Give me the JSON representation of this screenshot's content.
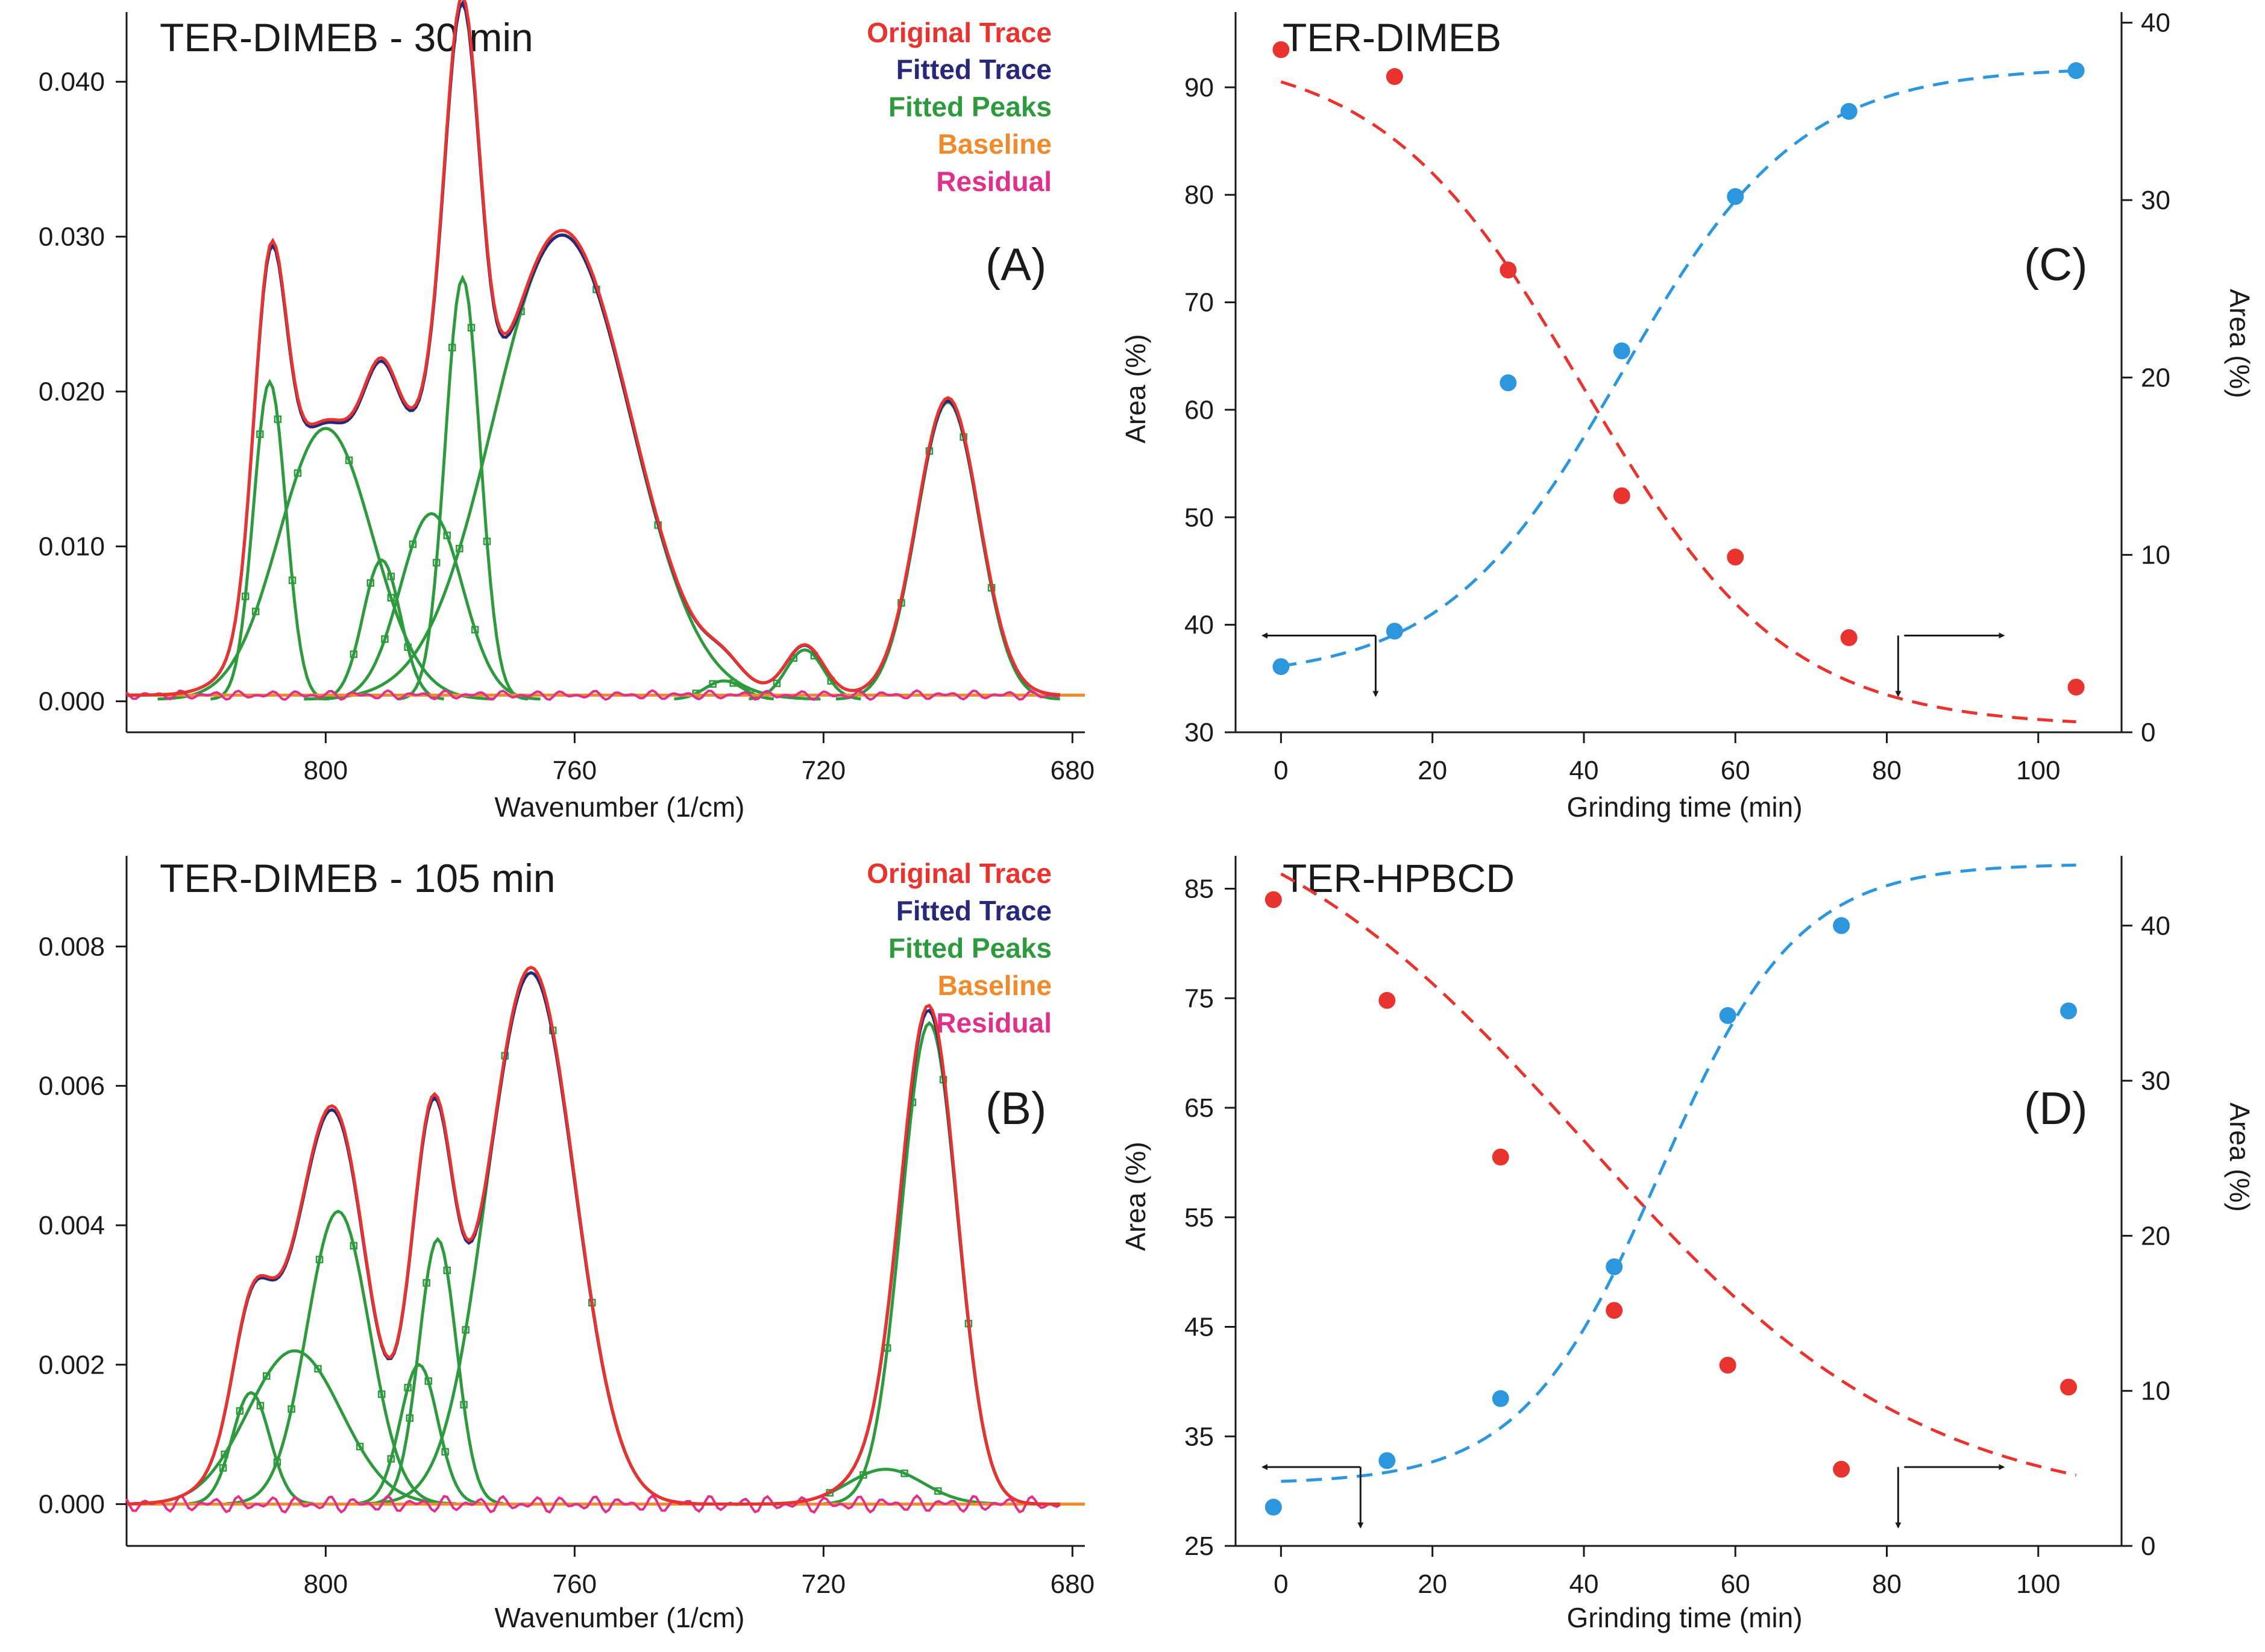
{
  "chart_data": [
    {
      "id": "A",
      "type": "line",
      "title": "TER-DIMEB - 30 min",
      "panel_label": "(A)",
      "xlabel": "Wavenumber (1/cm)",
      "ylabel": "",
      "x_reversed": true,
      "xlim": [
        832,
        678
      ],
      "ylim": [
        -0.002,
        0.0445
      ],
      "xticks": [
        800,
        760,
        720,
        680
      ],
      "yticks": [
        "0.000",
        "0.010",
        "0.020",
        "0.030",
        "0.040"
      ],
      "ytick_values": [
        0,
        0.01,
        0.02,
        0.03,
        0.04
      ],
      "legend": [
        {
          "label": "Original Trace",
          "color": "#e8332f"
        },
        {
          "label": "Fitted Trace",
          "color": "#28287a"
        },
        {
          "label": "Fitted Peaks",
          "color": "#2e9a3e"
        },
        {
          "label": "Baseline",
          "color": "#f08a2a"
        },
        {
          "label": "Residual",
          "color": "#e0308a"
        }
      ],
      "peaks": [
        {
          "center": 809,
          "amplitude": 0.0205,
          "width": 2.6
        },
        {
          "center": 800,
          "amplitude": 0.0175,
          "width": 7.5
        },
        {
          "center": 791,
          "amplitude": 0.009,
          "width": 3.0
        },
        {
          "center": 778,
          "amplitude": 0.0272,
          "width": 2.8
        },
        {
          "center": 762,
          "amplitude": 0.03,
          "width": 11.0
        },
        {
          "center": 736,
          "amplitude": 0.0012,
          "width": 3.0
        },
        {
          "center": 723,
          "amplitude": 0.0032,
          "width": 3.0
        },
        {
          "center": 700,
          "amplitude": 0.0192,
          "width": 5.0
        },
        {
          "center": 783,
          "amplitude": 0.012,
          "width": 5.0
        }
      ],
      "baseline": 0.0004
    },
    {
      "id": "B",
      "type": "line",
      "title": "TER-DIMEB - 105 min",
      "panel_label": "(B)",
      "xlabel": "Wavenumber (1/cm)",
      "ylabel": "",
      "x_reversed": true,
      "xlim": [
        832,
        678
      ],
      "ylim": [
        -0.0006,
        0.0093
      ],
      "xticks": [
        800,
        760,
        720,
        680
      ],
      "yticks": [
        "0.000",
        "0.002",
        "0.004",
        "0.006",
        "0.008"
      ],
      "ytick_values": [
        0,
        0.002,
        0.004,
        0.006,
        0.008
      ],
      "legend": [
        {
          "label": "Original Trace",
          "color": "#e8332f"
        },
        {
          "label": "Fitted Trace",
          "color": "#28287a"
        },
        {
          "label": "Fitted Peaks",
          "color": "#2e9a3e"
        },
        {
          "label": "Baseline",
          "color": "#f08a2a"
        },
        {
          "label": "Residual",
          "color": "#e0308a"
        }
      ],
      "peaks": [
        {
          "center": 812,
          "amplitude": 0.0016,
          "width": 3.0
        },
        {
          "center": 805,
          "amplitude": 0.0022,
          "width": 7.5
        },
        {
          "center": 798,
          "amplitude": 0.0042,
          "width": 5.0
        },
        {
          "center": 785,
          "amplitude": 0.002,
          "width": 3.0
        },
        {
          "center": 782,
          "amplitude": 0.0038,
          "width": 3.0
        },
        {
          "center": 767,
          "amplitude": 0.0077,
          "width": 7.0
        },
        {
          "center": 710,
          "amplitude": 0.0005,
          "width": 6.0
        },
        {
          "center": 703,
          "amplitude": 0.0069,
          "width": 4.5
        }
      ],
      "baseline": 0.0
    },
    {
      "id": "C",
      "type": "scatter",
      "title": "TER-DIMEB",
      "panel_label": "(C)",
      "xlabel": "Grinding time (min)",
      "ylabel": "Area (%)",
      "y2label": "Area (%)",
      "xlim": [
        -6,
        111
      ],
      "ylim": [
        30,
        97
      ],
      "y2lim": [
        0,
        40.6
      ],
      "xticks": [
        0,
        20,
        40,
        60,
        80,
        100
      ],
      "yticks": [
        30,
        40,
        50,
        60,
        70,
        80,
        90
      ],
      "y2ticks": [
        0,
        10,
        20,
        30,
        40
      ],
      "series": [
        {
          "name": "",
          "axis": "left",
          "color": "#e8332f",
          "x": [
            0,
            15,
            30,
            45,
            60,
            75,
            105
          ],
          "values": [
            93.5,
            91,
            73,
            52,
            46.3,
            38.8,
            34.2
          ]
        },
        {
          "name": "",
          "axis": "right",
          "color": "#2c97dd",
          "x": [
            0,
            15,
            30,
            45,
            60,
            75,
            105
          ],
          "values": [
            3.7,
            5.7,
            19.7,
            21.5,
            30.2,
            35,
            37.3
          ]
        }
      ],
      "fits": [
        {
          "axis": "left",
          "color": "#e8332f",
          "kind": "sigmoid-down",
          "top": 93.5,
          "bottom": 30.5,
          "mid": 40,
          "k": 0.075
        },
        {
          "axis": "right",
          "color": "#2c97dd",
          "kind": "sigmoid-up",
          "top": 37.5,
          "bottom": 3.0,
          "mid": 45,
          "k": 0.085
        }
      ],
      "arrows": {
        "left": {
          "x": 12.5,
          "y": 39
        },
        "right": {
          "x": 81.5,
          "y": 39
        }
      }
    },
    {
      "id": "D",
      "type": "scatter",
      "title": "TER-HPBCD",
      "panel_label": "(D)",
      "xlabel": "Grinding time (min)",
      "ylabel": "Area (%)",
      "y2label": "Area (%)",
      "xlim": [
        -6,
        111
      ],
      "ylim": [
        25,
        88
      ],
      "y2lim": [
        0,
        44.5
      ],
      "xticks": [
        0,
        20,
        40,
        60,
        80,
        100
      ],
      "yticks": [
        25,
        35,
        45,
        55,
        65,
        75,
        85
      ],
      "y2ticks": [
        0,
        10,
        20,
        30,
        40
      ],
      "series": [
        {
          "name": "",
          "axis": "left",
          "color": "#e8332f",
          "x": [
            -1,
            14,
            29,
            44,
            59,
            74,
            104
          ],
          "values": [
            84,
            74.8,
            60.5,
            46.5,
            41.5,
            32,
            39.5
          ]
        },
        {
          "name": "",
          "axis": "right",
          "color": "#2c97dd",
          "x": [
            -1,
            14,
            29,
            44,
            59,
            74,
            104
          ],
          "values": [
            2.5,
            5.5,
            9.5,
            18,
            34.2,
            40,
            34.5
          ]
        }
      ],
      "fits": [
        {
          "axis": "left",
          "color": "#e8332f",
          "kind": "sigmoid-down",
          "top": 96,
          "bottom": 28,
          "mid": 40,
          "k": 0.045
        },
        {
          "axis": "right",
          "color": "#2c97dd",
          "kind": "sigmoid-up",
          "top": 44,
          "bottom": 4.0,
          "mid": 50,
          "k": 0.11
        }
      ],
      "arrows": {
        "left": {
          "x": 10.5,
          "y": 32.2
        },
        "right": {
          "x": 81.5,
          "y": 32.2
        }
      }
    }
  ]
}
